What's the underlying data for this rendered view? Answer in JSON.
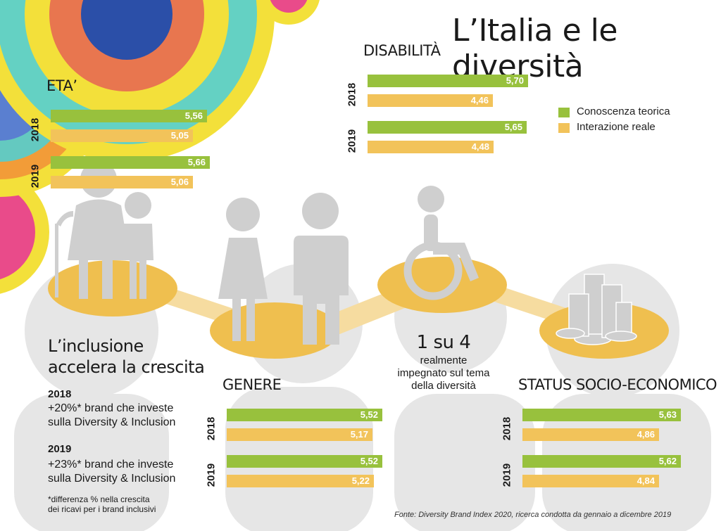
{
  "title": "L’Italia e le diversità",
  "colors": {
    "green": "#98c13d",
    "yellow": "#f2c35a",
    "grey": "#d9d9d9",
    "disc": "#efbf4f"
  },
  "legend": [
    {
      "label": "Conoscenza teorica",
      "color": "#98c13d"
    },
    {
      "label": "Interazione reale",
      "color": "#f2c35a"
    }
  ],
  "chart_data": [
    {
      "type": "bar",
      "title": "ETA’",
      "series": [
        {
          "year": "2018",
          "values": [
            5.56,
            5.05
          ],
          "labels": [
            "5,56",
            "5,05"
          ]
        },
        {
          "year": "2019",
          "values": [
            5.66,
            5.06
          ],
          "labels": [
            "5,66",
            "5,06"
          ]
        }
      ]
    },
    {
      "type": "bar",
      "title": "DISABILITÀ",
      "series": [
        {
          "year": "2018",
          "values": [
            5.7,
            4.46
          ],
          "labels": [
            "5,70",
            "4,46"
          ]
        },
        {
          "year": "2019",
          "values": [
            5.65,
            4.48
          ],
          "labels": [
            "5,65",
            "4,48"
          ]
        }
      ]
    },
    {
      "type": "bar",
      "title": "GENERE",
      "series": [
        {
          "year": "2018",
          "values": [
            5.52,
            5.17
          ],
          "labels": [
            "5,52",
            "5,17"
          ]
        },
        {
          "year": "2019",
          "values": [
            5.52,
            5.22
          ],
          "labels": [
            "5,52",
            "5,22"
          ]
        }
      ]
    },
    {
      "type": "bar",
      "title": "STATUS SOCIO-ECONOMICO",
      "series": [
        {
          "year": "2018",
          "values": [
            5.63,
            4.86
          ],
          "labels": [
            "5,63",
            "4,86"
          ]
        },
        {
          "year": "2019",
          "values": [
            5.62,
            4.84
          ],
          "labels": [
            "5,62",
            "4,84"
          ]
        }
      ]
    }
  ],
  "inclusion": {
    "title_line1": "L’inclusione",
    "title_line2": "accelera la crescita",
    "y2018": "2018",
    "y2018_l1": "+20%* brand che investe",
    "y2018_l2": "sulla Diversity & Inclusion",
    "y2019": "2019",
    "y2019_l1": "+23%* brand che investe",
    "y2019_l2": "sulla Diversity & Inclusion",
    "note_l1": "*differenza % nella crescita",
    "note_l2": "dei ricavi per i brand inclusivi"
  },
  "stat": {
    "big": "1 su 4",
    "l1": "realmente",
    "l2": "impegnato sul tema",
    "l3": "della diversità"
  },
  "source": "Fonte: Diversity Brand Index 2020, ricerca condotta da gennaio a dicembre 2019"
}
